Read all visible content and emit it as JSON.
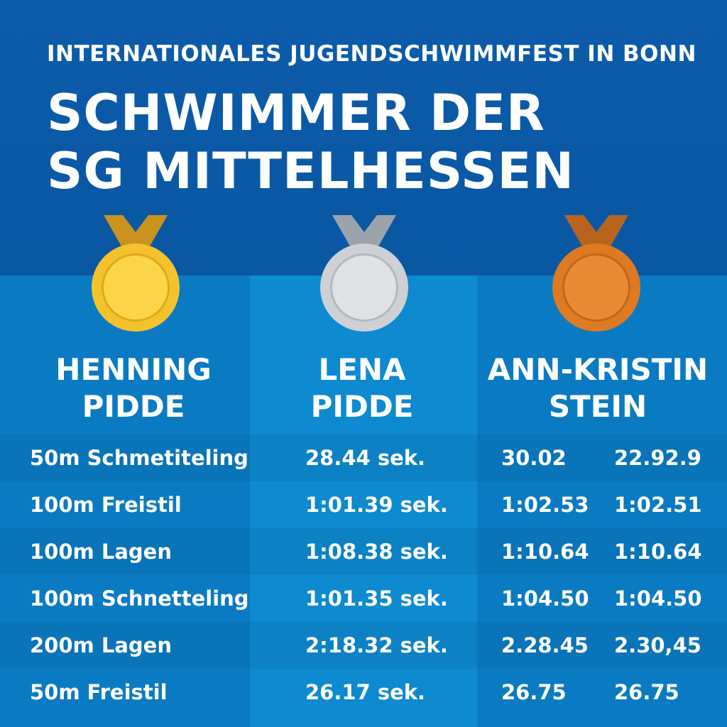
{
  "header": {
    "subtitle": "INTERNATIONALES JUGENDSCHWIMMFEST IN BONN",
    "title_line1": "SCHWIMMER DER",
    "title_line2": "SG MITTELHESSEN"
  },
  "swimmers": [
    {
      "first": "HENNING",
      "last": "PIDDE",
      "medal": "gold",
      "color": "#f2c230"
    },
    {
      "first": "LENA",
      "last": "PIDDE",
      "medal": "silver",
      "color": "#cfd2d6"
    },
    {
      "first": "ANN-KRISTIN",
      "last": "STEIN",
      "medal": "bronze",
      "color": "#de7d25"
    }
  ],
  "rows": [
    {
      "event": "50m Schmetiteling",
      "time1": "28.44 sek.",
      "time2": "30.02",
      "time3": "22.92.9"
    },
    {
      "event": "100m Freistil",
      "time1": "1:01.39 sek.",
      "time2": "1:02.53",
      "time3": "1:02.51"
    },
    {
      "event": "100m Lagen",
      "time1": "1:08.38 sek.",
      "time2": "1:10.64",
      "time3": "1:10.64"
    },
    {
      "event": "100m Schnetteling",
      "time1": "1:01.35 sek.",
      "time2": "1:04.50",
      "time3": "1:04.50"
    },
    {
      "event": "200m Lagen",
      "time1": "2:18.32 sek.",
      "time2": "2.28.45",
      "time3": "2.30,45"
    },
    {
      "event": "50m Freistil",
      "time1": "26.17 sek.",
      "time2": "26.75",
      "time3": "26.75"
    }
  ]
}
